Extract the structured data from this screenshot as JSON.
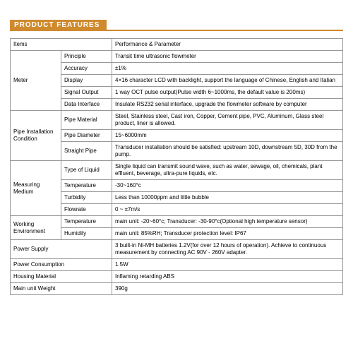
{
  "header": {
    "title": "PRODUCT FEATURES"
  },
  "table": {
    "columns": {
      "col1_width": 72,
      "col2_width": 72
    },
    "border_color": "#999999",
    "header_bg": "#d08a2e",
    "header_text_color": "#ffffff",
    "font_size": 8,
    "header_font_size": 10,
    "rows": {
      "items": {
        "c1": "Items",
        "c3": "Performance & Parameter"
      },
      "meter": {
        "label": "Meter",
        "principle": {
          "k": "Principle",
          "v": "Transit time ultrasonic flowmeter"
        },
        "accuracy": {
          "k": "Accuracy",
          "v": "±1%"
        },
        "display": {
          "k": "Display",
          "v": "4×16 character LCD with backlight, support the language of Chinese, English and Italian"
        },
        "signal_output": {
          "k": "Signal Output",
          "v": "1 way OCT pulse output(Pulse width 6~1000ms, the default value is 200ms)"
        },
        "data_interface": {
          "k": "Data Interface",
          "v": "Insulate RS232 serial interface, upgrade the flowmeter software by computer"
        }
      },
      "pipe": {
        "label": "Pipe Installation Condition",
        "material": {
          "k": "Pipe Material",
          "v": "Steel, Stainless steel, Cast iron, Copper, Cement pipe, PVC, Aluminum, Glass steel product, liner is allowed."
        },
        "diameter": {
          "k": "Pipe Diameter",
          "v": "15~6000mm"
        },
        "straight": {
          "k": "Straight Pipe",
          "v": "Transducer installation should be satisfied: upstream 10D, downstream 5D, 30D from the pump."
        }
      },
      "medium": {
        "label": "Measuring Medium",
        "liquid": {
          "k": "Type of Liquid",
          "v": "Single liquid can transmit sound wave, such as water, sewage, oil, chemicals, plant effluent, beverage, ultra-pure liquids, etc."
        },
        "temperature": {
          "k": "Temperature",
          "v": "-30~160°c"
        },
        "turbidity": {
          "k": "Turbidity",
          "v": "Less than 10000ppm and little bubble"
        },
        "flowrate": {
          "k": "Flowrate",
          "v": "0 ~ ±7m/s"
        }
      },
      "env": {
        "label": "Working Environment",
        "temperature": {
          "k": "Temperature",
          "v": "main unit: -20~60°c; Transducer: -30-90°c(Optional high temperature sensor)"
        },
        "humidity": {
          "k": "Humidity",
          "v": "main unit: 85%RH; Transducer protection level: IP67"
        }
      },
      "power_supply": {
        "k": "Power Supply",
        "v": "3 built-in Ni-MH batteries 1.2V(for over 12 hours of operation). Achieve to continuous measurement by connecting AC 90V - 260V adapter."
      },
      "power_consumption": {
        "k": "Power Consumption",
        "v": "1.5W"
      },
      "housing": {
        "k": "Housing Material",
        "v": "Inflaming retarding ABS"
      },
      "weight": {
        "k": "Main unit Weight",
        "v": "390g"
      }
    }
  }
}
